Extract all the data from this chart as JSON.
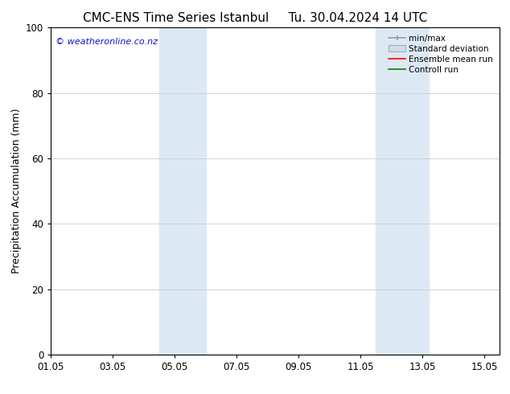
{
  "title_left": "CMC-ENS Time Series Istanbul",
  "title_right": "Tu. 30.04.2024 14 UTC",
  "ylabel": "Precipitation Accumulation (mm)",
  "xlim_start": 0,
  "xlim_end": 14.5,
  "ylim": [
    0,
    100
  ],
  "yticks": [
    0,
    20,
    40,
    60,
    80,
    100
  ],
  "xtick_labels": [
    "01.05",
    "03.05",
    "05.05",
    "07.05",
    "09.05",
    "11.05",
    "13.05",
    "15.05"
  ],
  "xtick_positions": [
    0,
    2,
    4,
    6,
    8,
    10,
    12,
    14
  ],
  "shaded_regions": [
    {
      "xmin": 3.5,
      "xmax": 5.0,
      "color": "#dce9f5"
    },
    {
      "xmin": 10.5,
      "xmax": 12.2,
      "color": "#dce9f5"
    }
  ],
  "watermark_text": "© weatheronline.co.nz",
  "watermark_color": "#1111cc",
  "bg_color": "#ffffff",
  "grid_color": "#cccccc",
  "title_fontsize": 11,
  "label_fontsize": 9,
  "tick_fontsize": 8.5,
  "legend_fontsize": 7.5
}
